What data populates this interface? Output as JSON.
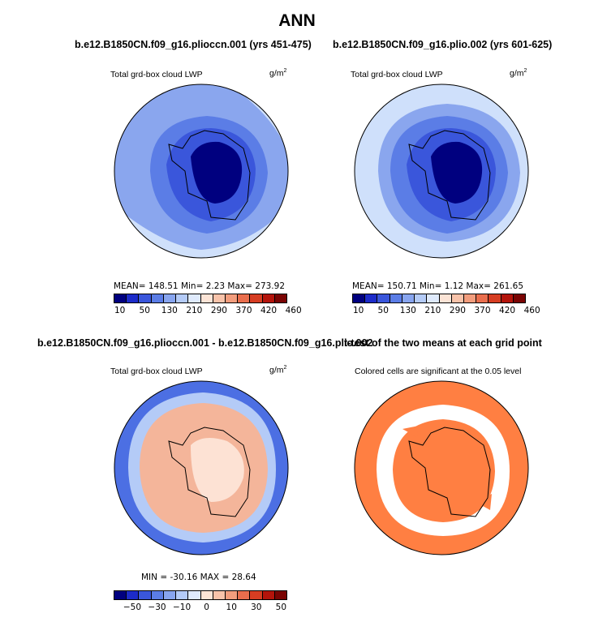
{
  "title": "ANN",
  "panels": [
    {
      "title": "b.e12.B1850CN.f09_g16.plioccn.001 (yrs 451-475)",
      "left_label": "Total grd-box cloud LWP",
      "right_label": "g/m",
      "right_label_sup": "2",
      "stats": "MEAN= 148.51   Min=    2.23   Max= 273.92"
    },
    {
      "title": "b.e12.B1850CN.f09_g16.plio.002 (yrs 601-625)",
      "left_label": "Total grd-box cloud LWP",
      "right_label": "g/m",
      "right_label_sup": "2",
      "stats": "MEAN= 150.71   Min=    1.12   Max= 261.65"
    },
    {
      "title": "b.e12.B1850CN.f09_g16.plioccn.001 - b.e12.B1850CN.f09_g16.plio.002",
      "left_label": "Total grd-box cloud LWP",
      "right_label": "g/m",
      "right_label_sup": "2",
      "stats": "MIN =  -30.16  MAX =   28.64"
    },
    {
      "title": "t-test of the two means at each grid point",
      "left_label": "Colored cells are significant at the 0.05 level"
    }
  ],
  "colorbar_abs": {
    "colors": [
      "#00007f",
      "#1c2bc9",
      "#3a56db",
      "#5b7de6",
      "#88a5ef",
      "#b4cbf7",
      "#dfeafc",
      "#fce4d6",
      "#f8c3aa",
      "#f29d7d",
      "#e96e4d",
      "#d63d22",
      "#b4140b",
      "#7a0403"
    ],
    "labels": [
      "10",
      "50",
      "130",
      "210",
      "290",
      "370",
      "420",
      "460"
    ]
  },
  "colorbar_diff": {
    "colors": [
      "#00007f",
      "#1c2bc9",
      "#3a56db",
      "#5b7de6",
      "#88a5ef",
      "#b4cbf7",
      "#dfeafc",
      "#fce4d6",
      "#f8c3aa",
      "#f29d7d",
      "#e96e4d",
      "#d63d22",
      "#b4140b",
      "#7a0403"
    ],
    "labels": [
      "−50",
      "−30",
      "−10",
      "0",
      "10",
      "30",
      "50"
    ]
  },
  "map_colors": {
    "ocean_outer_a": "#8aa6ee",
    "ocean_outer_b": "#cfe0fb",
    "ring_mid": "#5b7de6",
    "ring_inner": "#3a56db",
    "continent_dark": "#00007f",
    "diff_outer": "#4c6fe3",
    "diff_mid": "#b4cbf7",
    "diff_warm": "#f4b59a",
    "diff_light": "#fde2d4",
    "ttest_fill": "#ff7f42",
    "ttest_gap": "#ffffff",
    "coast": "#000000"
  }
}
